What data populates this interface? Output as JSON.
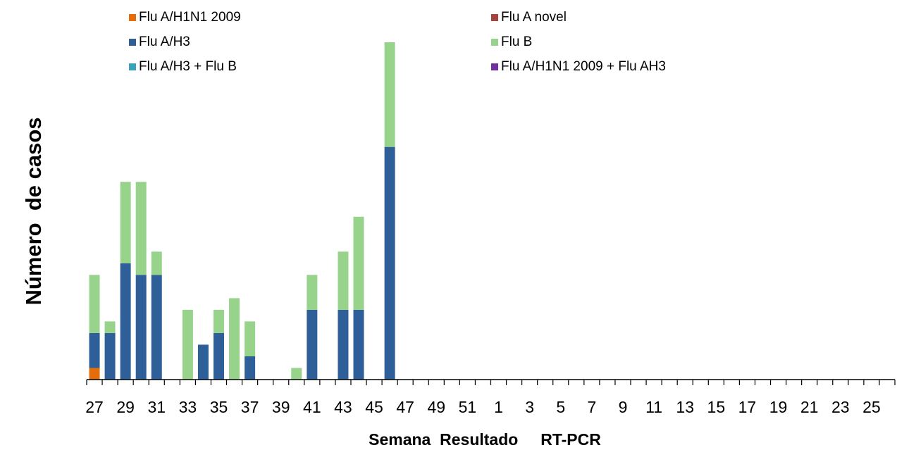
{
  "chart_data": {
    "type": "stacked-bar",
    "x_label": "Semana  Resultado     RT-PCR",
    "y_label": "Número  de casos",
    "categories": [
      "27",
      null,
      "29",
      null,
      "31",
      null,
      "33",
      null,
      "35",
      null,
      "37",
      null,
      "39",
      null,
      "41",
      null,
      "43",
      null,
      "45",
      null,
      "47",
      null,
      "49",
      null,
      "51",
      null,
      "1",
      null,
      "3",
      null,
      "5",
      null,
      "7",
      null,
      "9",
      null,
      "11",
      null,
      "13",
      null,
      "15",
      null,
      "17",
      null,
      "19",
      null,
      "21",
      null,
      "23",
      null,
      "25",
      null
    ],
    "series": [
      {
        "name": "Flu A/H1N1 2009",
        "color": "#e46c0a",
        "values": [
          1,
          0,
          0,
          0,
          0,
          0,
          0,
          0,
          0,
          0,
          0,
          0,
          0,
          0,
          0,
          0,
          0,
          0,
          0,
          0,
          0,
          0,
          0,
          0,
          0,
          0,
          0,
          0,
          0,
          0,
          0,
          0,
          0,
          0,
          0,
          0,
          0,
          0,
          0,
          0,
          0,
          0,
          0,
          0,
          0,
          0,
          0,
          0,
          0,
          0,
          0,
          0
        ]
      },
      {
        "name": "Flu A novel",
        "color": "#a5433f",
        "values": [
          0,
          0,
          0,
          0,
          0,
          0,
          0,
          0,
          0,
          0,
          0,
          0,
          0,
          0,
          0,
          0,
          0,
          0,
          0,
          0,
          0,
          0,
          0,
          0,
          0,
          0,
          0,
          0,
          0,
          0,
          0,
          0,
          0,
          0,
          0,
          0,
          0,
          0,
          0,
          0,
          0,
          0,
          0,
          0,
          0,
          0,
          0,
          0,
          0,
          0,
          0,
          0
        ]
      },
      {
        "name": "Flu A/H3",
        "color": "#2f5f98",
        "values": [
          3,
          4,
          10,
          9,
          9,
          0,
          0,
          3,
          4,
          0,
          2,
          0,
          0,
          0,
          6,
          0,
          6,
          6,
          0,
          20,
          0,
          0,
          0,
          0,
          0,
          0,
          0,
          0,
          0,
          0,
          0,
          0,
          0,
          0,
          0,
          0,
          0,
          0,
          0,
          0,
          0,
          0,
          0,
          0,
          0,
          0,
          0,
          0,
          0,
          0,
          0,
          0
        ]
      },
      {
        "name": "Flu B",
        "color": "#98d38c",
        "values": [
          5,
          1,
          7,
          8,
          2,
          0,
          6,
          0,
          2,
          7,
          3,
          0,
          0,
          1,
          3,
          0,
          5,
          8,
          0,
          9,
          0,
          0,
          0,
          0,
          0,
          0,
          0,
          0,
          0,
          0,
          0,
          0,
          0,
          0,
          0,
          0,
          0,
          0,
          0,
          0,
          0,
          0,
          0,
          0,
          0,
          0,
          0,
          0,
          0,
          0,
          0,
          0
        ]
      },
      {
        "name": "Flu A/H3 + Flu B",
        "color": "#3aa3b8",
        "values": [
          0,
          0,
          0,
          0,
          0,
          0,
          0,
          0,
          0,
          0,
          0,
          0,
          0,
          0,
          0,
          0,
          0,
          0,
          0,
          0,
          0,
          0,
          0,
          0,
          0,
          0,
          0,
          0,
          0,
          0,
          0,
          0,
          0,
          0,
          0,
          0,
          0,
          0,
          0,
          0,
          0,
          0,
          0,
          0,
          0,
          0,
          0,
          0,
          0,
          0,
          0,
          0
        ]
      },
      {
        "name": "Flu A/H1N1 2009 + Flu AH3",
        "color": "#7030a0",
        "values": [
          0,
          0,
          0,
          0,
          0,
          0,
          0,
          0,
          0,
          0,
          0,
          0,
          0,
          0,
          0,
          0,
          0,
          0,
          0,
          0,
          0,
          0,
          0,
          0,
          0,
          0,
          0,
          0,
          0,
          0,
          0,
          0,
          0,
          0,
          0,
          0,
          0,
          0,
          0,
          0,
          0,
          0,
          0,
          0,
          0,
          0,
          0,
          0,
          0,
          0,
          0,
          0
        ]
      }
    ]
  }
}
